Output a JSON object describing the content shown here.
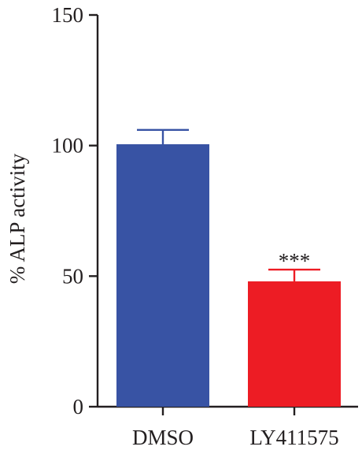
{
  "chart_data": {
    "type": "bar",
    "categories": [
      "DMSO",
      "LY411575"
    ],
    "values": [
      100.5,
      48
    ],
    "errors": [
      5.5,
      4.5
    ],
    "colors": [
      "#3853a4",
      "#ed1c24"
    ],
    "ylabel": "% ALP activity",
    "xlabel": "",
    "ylim": [
      0,
      150
    ],
    "yticks": [
      0,
      50,
      100,
      150
    ],
    "yticklabels": [
      "0",
      "50",
      "100",
      "150"
    ],
    "annotations": [
      "",
      "***"
    ],
    "axis_color": "#231f20",
    "grid": false
  }
}
